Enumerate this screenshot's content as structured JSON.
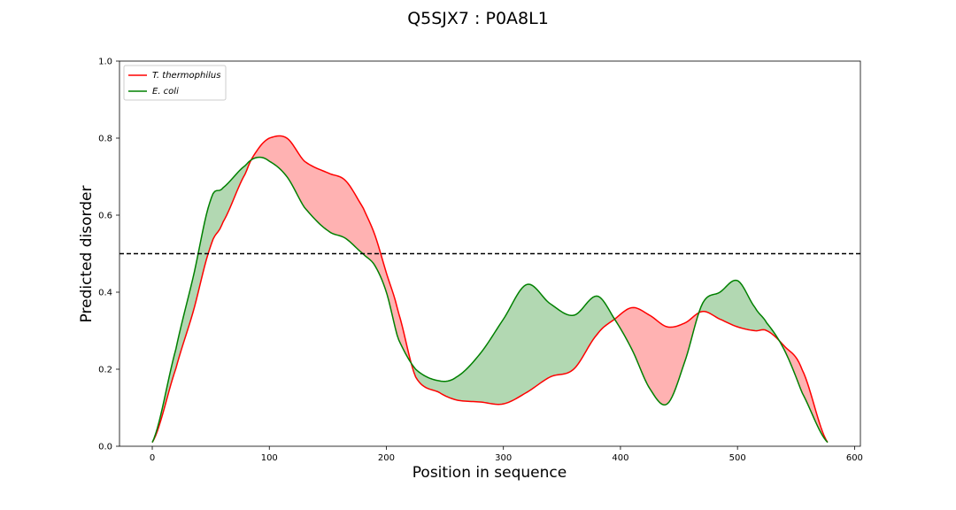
{
  "chart_data": {
    "type": "area",
    "title": "Q5SJX7 : P0A8L1",
    "xlabel": "Position in sequence",
    "ylabel": "Predicted disorder",
    "xlim": [
      -28,
      605
    ],
    "ylim": [
      0.0,
      1.0
    ],
    "xticks": [
      0,
      100,
      200,
      300,
      400,
      500,
      600
    ],
    "xtick_labels": [
      "0",
      "100",
      "200",
      "300",
      "400",
      "500",
      "600"
    ],
    "yticks": [
      0.0,
      0.2,
      0.4,
      0.6,
      0.8,
      1.0
    ],
    "ytick_labels": [
      "0.0",
      "0.2",
      "0.4",
      "0.6",
      "0.8",
      "1.0"
    ],
    "threshold": 0.5,
    "legend_position": "upper-left",
    "grid": false,
    "fill_colors": {
      "first_higher": "#ffb2b2",
      "second_higher": "#b2d8b2"
    },
    "x": [
      0,
      20,
      35,
      50,
      60,
      80,
      90,
      100,
      115,
      130,
      150,
      165,
      180,
      190,
      200,
      210,
      225,
      245,
      260,
      280,
      300,
      320,
      340,
      360,
      380,
      395,
      410,
      425,
      440,
      455,
      470,
      485,
      500,
      515,
      525,
      540,
      555,
      577
    ],
    "series": [
      {
        "name": "T. thermophilus",
        "color": "#ff0000",
        "values": [
          0.01,
          0.2,
          0.35,
          0.52,
          0.58,
          0.71,
          0.77,
          0.8,
          0.8,
          0.74,
          0.71,
          0.69,
          0.62,
          0.55,
          0.45,
          0.35,
          0.18,
          0.14,
          0.12,
          0.115,
          0.11,
          0.14,
          0.18,
          0.2,
          0.29,
          0.33,
          0.36,
          0.34,
          0.31,
          0.32,
          0.35,
          0.33,
          0.31,
          0.3,
          0.3,
          0.26,
          0.2,
          0.01
        ]
      },
      {
        "name": "E. coli",
        "color": "#008000",
        "values": [
          0.01,
          0.25,
          0.44,
          0.64,
          0.67,
          0.73,
          0.75,
          0.74,
          0.7,
          0.62,
          0.56,
          0.54,
          0.5,
          0.47,
          0.4,
          0.28,
          0.2,
          0.17,
          0.18,
          0.24,
          0.33,
          0.42,
          0.37,
          0.34,
          0.39,
          0.33,
          0.25,
          0.15,
          0.11,
          0.22,
          0.37,
          0.4,
          0.43,
          0.36,
          0.32,
          0.25,
          0.14,
          0.01
        ]
      }
    ]
  }
}
